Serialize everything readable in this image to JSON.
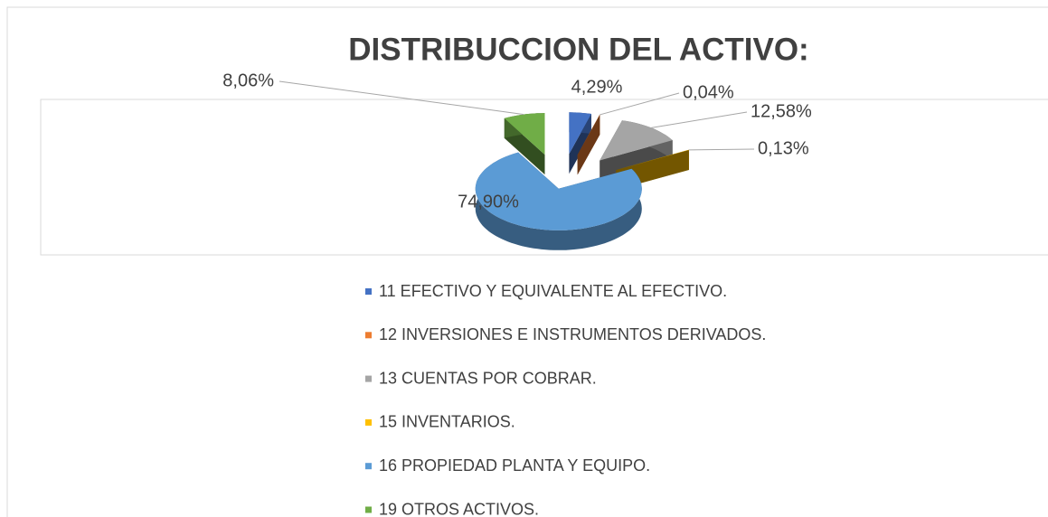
{
  "chart_data": {
    "type": "pie",
    "title": "DISTRIBUCCION DEL ACTIVO:",
    "categories": [
      "11 EFECTIVO Y EQUIVALENTE AL EFECTIVO.",
      "12 INVERSIONES E INSTRUMENTOS DERIVADOS.",
      "13 CUENTAS POR COBRAR.",
      "15 INVENTARIOS.",
      "16 PROPIEDAD PLANTA Y EQUIPO.",
      "19 OTROS ACTIVOS."
    ],
    "values": [
      4.29,
      0.04,
      12.58,
      0.13,
      74.9,
      8.06
    ],
    "value_labels": [
      "4,29%",
      "0,04%",
      "12,58%",
      "0,13%",
      "74,90%",
      "8,06%"
    ],
    "colors": [
      "#4472c4",
      "#ed7d31",
      "#a5a5a5",
      "#ffc000",
      "#5b9bd5",
      "#70ad47"
    ],
    "legend": "bottom"
  }
}
